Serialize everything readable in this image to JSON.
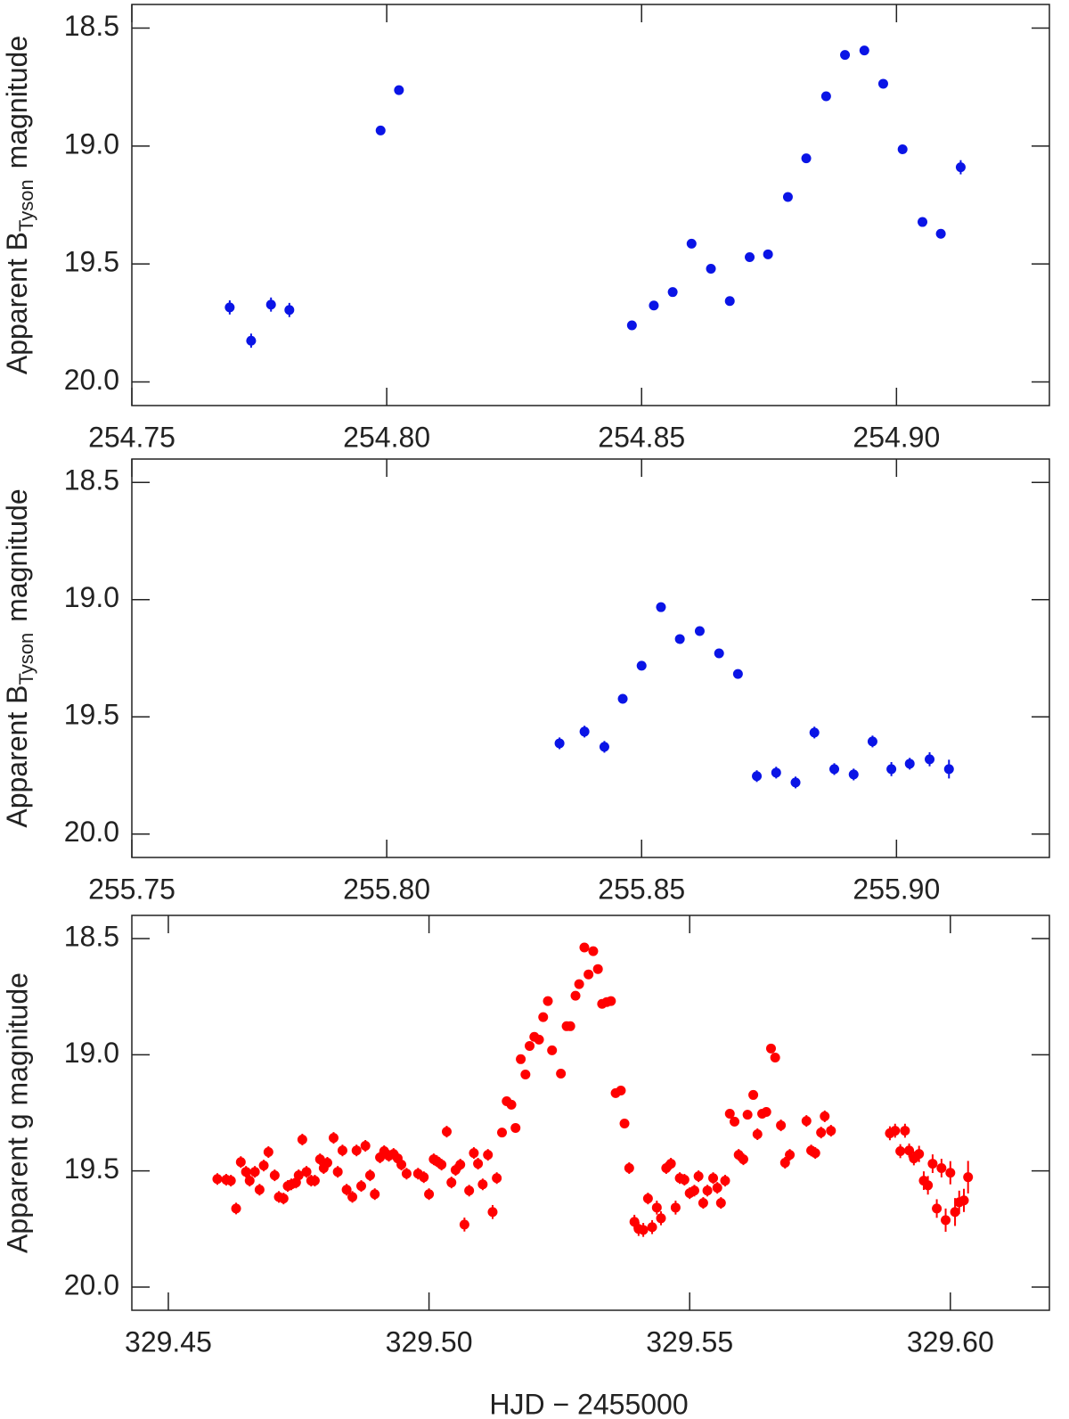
{
  "chart_data": [
    {
      "type": "scatter",
      "ylabel": [
        "Apparent B",
        "Tyson",
        "magnitude"
      ],
      "color": "#0a14e6",
      "xlim": [
        254.75,
        254.93
      ],
      "ylim": [
        20.1,
        18.4
      ],
      "xticks": [
        254.75,
        {
          "value": 254.8,
          "label": "254.80"
        },
        254.85,
        {
          "value": 254.9,
          "label": "254.90"
        }
      ],
      "yticks": [
        18.5,
        {
          "value": 19,
          "label": "19.0"
        },
        19.5,
        {
          "value": 20,
          "label": "20.0"
        }
      ],
      "x": [
        254.7692,
        254.7734,
        254.7773,
        254.7809,
        254.7988,
        254.8024,
        254.8481,
        254.8524,
        254.8561,
        254.8598,
        254.8636,
        254.8673,
        254.8712,
        254.8748,
        254.8787,
        254.8823,
        254.8862,
        254.8899,
        254.8937,
        254.8974,
        254.9012,
        254.9051,
        254.9087,
        254.9126
      ],
      "values": [
        19.684,
        19.825,
        19.672,
        19.695,
        18.934,
        18.763,
        19.76,
        19.676,
        19.619,
        19.414,
        19.52,
        19.657,
        19.471,
        19.459,
        19.216,
        19.052,
        18.789,
        18.614,
        18.595,
        18.736,
        19.014,
        19.322,
        19.372,
        19.09
      ],
      "errors": [
        0.03,
        0.03,
        0.03,
        0.03,
        0.015,
        0.015,
        0.015,
        0.015,
        0.015,
        0.015,
        0.015,
        0.015,
        0.015,
        0.015,
        0.015,
        0.015,
        0.015,
        0.015,
        0.015,
        0.015,
        0.015,
        0.015,
        0.02,
        0.03
      ]
    },
    {
      "type": "scatter",
      "ylabel": [
        "Apparent B",
        "Tyson",
        "magnitude"
      ],
      "color": "#0a14e6",
      "xlim": [
        255.75,
        255.93
      ],
      "ylim": [
        20.1,
        18.4
      ],
      "xticks": [
        255.75,
        {
          "value": 255.8,
          "label": "255.80"
        },
        255.85,
        {
          "value": 255.9,
          "label": "255.90"
        }
      ],
      "yticks": [
        18.5,
        {
          "value": 19,
          "label": "19.0"
        },
        19.5,
        {
          "value": 20,
          "label": "20.0"
        }
      ],
      "x": [
        255.8339,
        255.8388,
        255.8427,
        255.8463,
        255.85,
        255.8538,
        255.8575,
        255.8614,
        255.8652,
        255.8689,
        255.8726,
        255.8764,
        255.8802,
        255.8839,
        255.8878,
        255.8916,
        255.8953,
        255.899,
        255.9026,
        255.9065,
        255.9103
      ],
      "values": [
        19.613,
        19.563,
        19.628,
        19.423,
        19.282,
        19.032,
        19.168,
        19.134,
        19.229,
        19.317,
        19.753,
        19.738,
        19.78,
        19.567,
        19.723,
        19.746,
        19.605,
        19.723,
        19.7,
        19.681,
        19.723
      ],
      "errors": [
        0.025,
        0.025,
        0.025,
        0.02,
        0.015,
        0.015,
        0.015,
        0.015,
        0.015,
        0.015,
        0.025,
        0.025,
        0.025,
        0.025,
        0.025,
        0.025,
        0.025,
        0.03,
        0.025,
        0.03,
        0.04
      ]
    },
    {
      "type": "scatter",
      "ylabel": "Apparent g magnitude",
      "xlabel": "HJD − 2455000",
      "color": "#ff0000",
      "xlim": [
        329.443,
        329.619
      ],
      "ylim": [
        20.1,
        18.4
      ],
      "xticks": [
        329.45,
        {
          "value": 329.5,
          "label": "329.50"
        },
        329.55,
        {
          "value": 329.6,
          "label": "329.60"
        }
      ],
      "yticks": [
        18.5,
        {
          "value": 19,
          "label": "19.0"
        },
        19.5,
        {
          "value": 20,
          "label": "20.0"
        }
      ],
      "x": [
        329.4594,
        329.4611,
        329.462,
        329.463,
        329.4639,
        329.4649,
        329.4656,
        329.4666,
        329.4675,
        329.4683,
        329.4692,
        329.4704,
        329.4712,
        329.4721,
        329.4729,
        329.4736,
        329.4745,
        329.475,
        329.4757,
        329.4765,
        329.4774,
        329.4781,
        329.4791,
        329.4798,
        329.4805,
        329.4817,
        329.4825,
        329.4834,
        329.4842,
        329.4853,
        329.4861,
        329.487,
        329.4878,
        329.4887,
        329.4896,
        329.4906,
        329.4914,
        329.4923,
        329.4932,
        329.494,
        329.4947,
        329.4957,
        329.4979,
        329.499,
        329.5,
        329.5009,
        329.5015,
        329.5024,
        329.5034,
        329.5043,
        329.5051,
        329.506,
        329.5068,
        329.5077,
        329.5086,
        329.5094,
        329.5103,
        329.5113,
        329.5122,
        329.513,
        329.514,
        329.5149,
        329.5158,
        329.5166,
        329.5176,
        329.5185,
        329.5193,
        329.5202,
        329.5211,
        329.5219,
        329.5228,
        329.5236,
        329.5253,
        329.5264,
        329.5271,
        329.5281,
        329.5288,
        329.5298,
        329.5306,
        329.5315,
        329.5324,
        329.5332,
        329.5341,
        329.5349,
        329.5358,
        329.5368,
        329.5375,
        329.5384,
        329.5394,
        329.5402,
        329.5411,
        329.542,
        329.5428,
        329.5437,
        329.5445,
        329.5455,
        329.5464,
        329.5473,
        329.5481,
        329.549,
        329.55,
        329.5509,
        329.5517,
        329.5526,
        329.5534,
        329.5545,
        329.5553,
        329.556,
        329.5568,
        329.5577,
        329.5586,
        329.5594,
        329.5603,
        329.5611,
        329.5622,
        329.563,
        329.5639,
        329.5647,
        329.5656,
        329.5664,
        329.5675,
        329.5683,
        329.5692,
        329.5724,
        329.5733,
        329.5741,
        329.5752,
        329.5759,
        329.5771,
        329.5884,
        329.5894,
        329.5904,
        329.5913,
        329.5921,
        329.593,
        329.594,
        329.5949,
        329.5957,
        329.5966,
        329.5974,
        329.5983,
        329.5991,
        329.6,
        329.6009,
        329.6017,
        329.6026,
        329.6034
      ],
      "values": [
        19.535,
        19.538,
        19.542,
        19.662,
        19.462,
        19.504,
        19.542,
        19.504,
        19.581,
        19.477,
        19.419,
        19.519,
        19.612,
        19.619,
        19.565,
        19.558,
        19.55,
        19.519,
        19.365,
        19.504,
        19.542,
        19.542,
        19.45,
        19.488,
        19.465,
        19.358,
        19.504,
        19.412,
        19.581,
        19.612,
        19.412,
        19.565,
        19.392,
        19.519,
        19.6,
        19.442,
        19.415,
        19.435,
        19.427,
        19.446,
        19.473,
        19.512,
        19.512,
        19.527,
        19.6,
        19.45,
        19.458,
        19.473,
        19.331,
        19.55,
        19.496,
        19.473,
        19.731,
        19.585,
        19.423,
        19.469,
        19.558,
        19.431,
        19.677,
        19.531,
        19.335,
        19.2,
        19.215,
        19.315,
        19.019,
        19.085,
        18.962,
        18.923,
        18.935,
        18.838,
        18.769,
        18.981,
        19.081,
        18.877,
        18.877,
        18.746,
        18.696,
        18.538,
        18.654,
        18.554,
        18.631,
        18.781,
        18.773,
        18.769,
        19.165,
        19.154,
        19.296,
        19.488,
        19.719,
        19.75,
        19.754,
        19.619,
        19.742,
        19.658,
        19.704,
        19.488,
        19.469,
        19.658,
        19.531,
        19.538,
        19.596,
        19.585,
        19.523,
        19.638,
        19.585,
        19.531,
        19.573,
        19.638,
        19.542,
        19.254,
        19.288,
        19.431,
        19.45,
        19.258,
        19.173,
        19.342,
        19.254,
        19.246,
        18.973,
        19.012,
        19.304,
        19.465,
        19.431,
        19.285,
        19.412,
        19.423,
        19.335,
        19.265,
        19.327,
        19.338,
        19.327,
        19.415,
        19.327,
        19.412,
        19.446,
        19.427,
        19.542,
        19.562,
        19.469,
        19.662,
        19.488,
        19.712,
        19.508,
        19.677,
        19.635,
        19.627,
        19.527
      ],
      "errors": [
        0.025,
        0.025,
        0.025,
        0.025,
        0.025,
        0.025,
        0.025,
        0.025,
        0.025,
        0.025,
        0.025,
        0.025,
        0.025,
        0.025,
        0.025,
        0.025,
        0.025,
        0.025,
        0.025,
        0.025,
        0.025,
        0.025,
        0.025,
        0.025,
        0.025,
        0.025,
        0.025,
        0.025,
        0.025,
        0.025,
        0.025,
        0.025,
        0.025,
        0.025,
        0.025,
        0.025,
        0.025,
        0.025,
        0.025,
        0.025,
        0.025,
        0.025,
        0.025,
        0.025,
        0.025,
        0.025,
        0.025,
        0.025,
        0.025,
        0.025,
        0.025,
        0.025,
        0.03,
        0.025,
        0.025,
        0.025,
        0.025,
        0.025,
        0.03,
        0.025,
        0.02,
        0.02,
        0.02,
        0.02,
        0.015,
        0.015,
        0.015,
        0.015,
        0.015,
        0.015,
        0.015,
        0.015,
        0.015,
        0.015,
        0.015,
        0.015,
        0.015,
        0.015,
        0.015,
        0.015,
        0.015,
        0.015,
        0.015,
        0.015,
        0.02,
        0.02,
        0.02,
        0.025,
        0.03,
        0.03,
        0.03,
        0.025,
        0.03,
        0.03,
        0.03,
        0.025,
        0.025,
        0.03,
        0.025,
        0.025,
        0.025,
        0.025,
        0.025,
        0.025,
        0.025,
        0.025,
        0.025,
        0.025,
        0.025,
        0.02,
        0.02,
        0.025,
        0.025,
        0.02,
        0.02,
        0.025,
        0.02,
        0.02,
        0.02,
        0.02,
        0.025,
        0.025,
        0.025,
        0.025,
        0.025,
        0.025,
        0.025,
        0.025,
        0.025,
        0.03,
        0.03,
        0.03,
        0.03,
        0.03,
        0.03,
        0.035,
        0.04,
        0.04,
        0.04,
        0.04,
        0.04,
        0.05,
        0.05,
        0.06,
        0.05,
        0.05,
        0.07
      ]
    }
  ]
}
